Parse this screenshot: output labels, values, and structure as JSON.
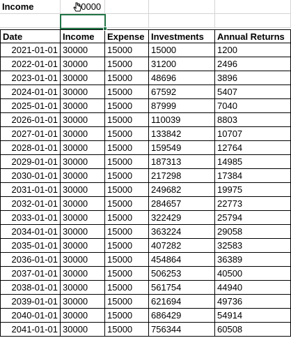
{
  "top": {
    "label": "Income",
    "value": "30000"
  },
  "headers": [
    "Date",
    "Income",
    "Expense",
    "Investments",
    "Annual Returns"
  ],
  "rows": [
    [
      "2021-01-01",
      "30000",
      "15000",
      "15000",
      "1200"
    ],
    [
      "2022-01-01",
      "30000",
      "15000",
      "31200",
      "2496"
    ],
    [
      "2023-01-01",
      "30000",
      "15000",
      "48696",
      "3896"
    ],
    [
      "2024-01-01",
      "30000",
      "15000",
      "67592",
      "5407"
    ],
    [
      "2025-01-01",
      "30000",
      "15000",
      "87999",
      "7040"
    ],
    [
      "2026-01-01",
      "30000",
      "15000",
      "110039",
      "8803"
    ],
    [
      "2027-01-01",
      "30000",
      "15000",
      "133842",
      "10707"
    ],
    [
      "2028-01-01",
      "30000",
      "15000",
      "159549",
      "12764"
    ],
    [
      "2029-01-01",
      "30000",
      "15000",
      "187313",
      "14985"
    ],
    [
      "2030-01-01",
      "30000",
      "15000",
      "217298",
      "17384"
    ],
    [
      "2031-01-01",
      "30000",
      "15000",
      "249682",
      "19975"
    ],
    [
      "2032-01-01",
      "30000",
      "15000",
      "284657",
      "22773"
    ],
    [
      "2033-01-01",
      "30000",
      "15000",
      "322429",
      "25794"
    ],
    [
      "2034-01-01",
      "30000",
      "15000",
      "363224",
      "29058"
    ],
    [
      "2035-01-01",
      "30000",
      "15000",
      "407282",
      "32583"
    ],
    [
      "2036-01-01",
      "30000",
      "15000",
      "454864",
      "36389"
    ],
    [
      "2037-01-01",
      "30000",
      "15000",
      "506253",
      "40500"
    ],
    [
      "2038-01-01",
      "30000",
      "15000",
      "561754",
      "44940"
    ],
    [
      "2039-01-01",
      "30000",
      "15000",
      "621694",
      "49736"
    ],
    [
      "2040-01-01",
      "30000",
      "15000",
      "686429",
      "54914"
    ],
    [
      "2041-01-01",
      "30000",
      "15000",
      "756344",
      "60508"
    ]
  ],
  "colors": {
    "selection": "#217346",
    "gridline": "#d4d4d4"
  }
}
